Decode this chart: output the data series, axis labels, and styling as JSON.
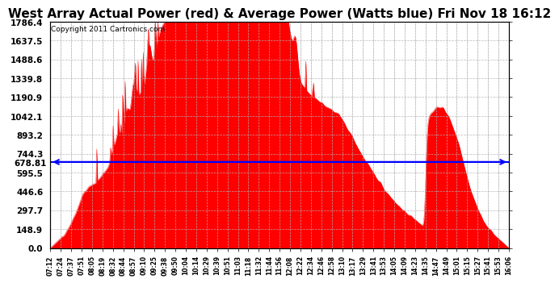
{
  "title": "West Array Actual Power (red) & Average Power (Watts blue) Fri Nov 18 16:12",
  "copyright": "Copyright 2011 Cartronics.com",
  "average_power": 678.81,
  "y_max": 1786.4,
  "y_ticks": [
    0.0,
    148.9,
    297.7,
    446.6,
    595.5,
    744.3,
    893.2,
    1042.1,
    1190.9,
    1339.8,
    1488.6,
    1637.5,
    1786.4
  ],
  "x_labels": [
    "07:12",
    "07:24",
    "07:37",
    "07:51",
    "08:05",
    "08:19",
    "08:32",
    "08:44",
    "08:57",
    "09:10",
    "09:25",
    "09:38",
    "09:50",
    "10:04",
    "10:14",
    "10:29",
    "10:39",
    "10:51",
    "11:03",
    "11:18",
    "11:32",
    "11:44",
    "11:56",
    "12:08",
    "12:22",
    "12:34",
    "12:46",
    "12:58",
    "13:10",
    "13:17",
    "13:29",
    "13:41",
    "13:53",
    "14:05",
    "14:09",
    "14:23",
    "14:35",
    "14:47",
    "14:49",
    "15:01",
    "15:15",
    "15:27",
    "15:41",
    "15:53",
    "16:06"
  ],
  "background_color": "#ffffff",
  "bar_color": "#ff0000",
  "line_color": "#0000ff",
  "grid_color": "#b0b0b0",
  "title_fontsize": 11,
  "tick_fontsize": 7.5
}
